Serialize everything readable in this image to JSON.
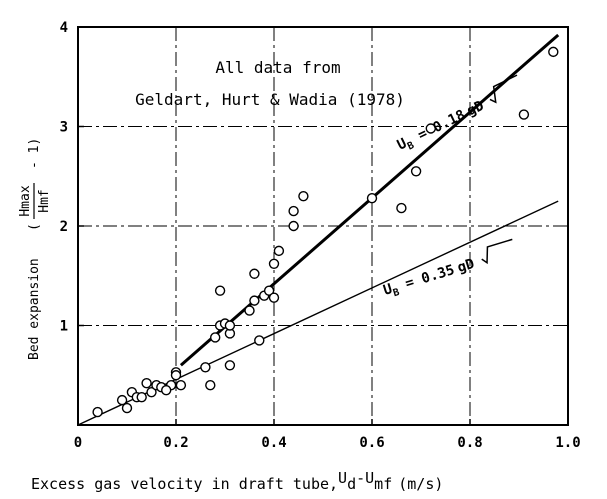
{
  "chart_data": {
    "type": "scatter",
    "title": "",
    "xlabel": "Excess gas velocity in draft tube,",
    "xlabel_var": "U",
    "xlabel_var_sub": "d",
    "xlabel_minus": "-U",
    "xlabel_minus_sub": "mf",
    "xlabel_unit": "(m/s)",
    "ylabel": "Bed expansion",
    "ylabel_num": "Hmax",
    "ylabel_den": "Hmf",
    "ylabel_tail": "- 1)",
    "ylabel_paren": "(",
    "xlim": [
      0,
      1.0
    ],
    "ylim": [
      0,
      4
    ],
    "xticks": [
      0,
      0.2,
      0.4,
      0.6,
      0.8,
      1.0
    ],
    "xtick_labels": [
      "0",
      "0.2",
      "0.4",
      "0.6",
      "0.8",
      "1.0"
    ],
    "yticks": [
      1,
      2,
      3,
      4
    ],
    "ytick_labels": [
      "1",
      "2",
      "3",
      "4"
    ],
    "grid": "dash-dot",
    "annotation": {
      "line1": "All data from",
      "line2": "Geldart, Hurt & Wadia (1978)"
    },
    "lines": [
      {
        "eq_main": "U",
        "eq_sub": "B",
        "eq_rest": " = 0.18",
        "eq_sqrt": "gD",
        "x": [
          0.21,
          0.98
        ],
        "y": [
          0.6,
          3.92
        ],
        "style": "thick"
      },
      {
        "eq_main": "U",
        "eq_sub": "B",
        "eq_rest": " = 0.35",
        "eq_sqrt": "gD",
        "x": [
          0.0,
          0.98
        ],
        "y": [
          0.0,
          2.25
        ],
        "style": "thin"
      }
    ],
    "points": {
      "x": [
        0.04,
        0.09,
        0.1,
        0.11,
        0.12,
        0.13,
        0.14,
        0.15,
        0.16,
        0.17,
        0.19,
        0.2,
        0.21,
        0.26,
        0.27,
        0.28,
        0.29,
        0.3,
        0.31,
        0.31,
        0.35,
        0.36,
        0.36,
        0.37,
        0.38,
        0.39,
        0.4,
        0.4,
        0.41,
        0.29,
        0.31,
        0.44,
        0.44,
        0.46,
        0.6,
        0.66,
        0.69,
        0.72,
        0.91,
        0.97,
        0.2,
        0.18
      ],
      "y": [
        0.13,
        0.25,
        0.17,
        0.33,
        0.28,
        0.28,
        0.42,
        0.33,
        0.4,
        0.38,
        0.4,
        0.53,
        0.4,
        0.58,
        0.4,
        0.88,
        1.0,
        1.02,
        0.92,
        0.6,
        1.15,
        1.25,
        1.52,
        0.85,
        1.3,
        1.35,
        1.28,
        1.62,
        1.75,
        1.35,
        1.0,
        2.0,
        2.15,
        2.3,
        2.28,
        2.18,
        2.55,
        2.98,
        3.12,
        3.75,
        0.5,
        0.35
      ]
    }
  }
}
